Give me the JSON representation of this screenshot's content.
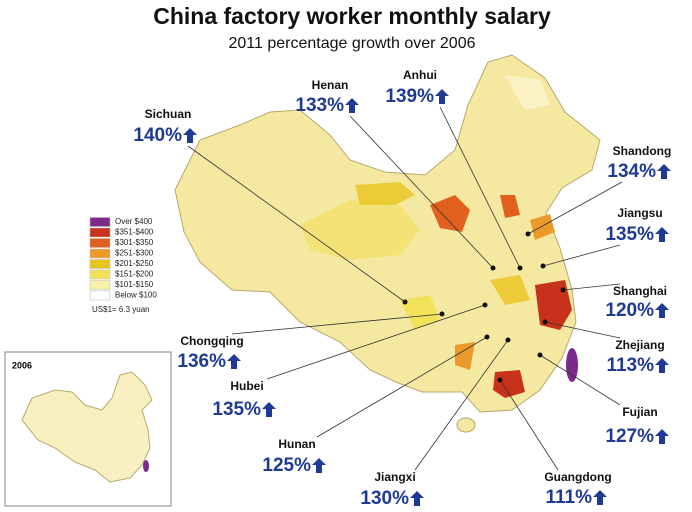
{
  "header": {
    "title": "China factory worker monthly salary",
    "subtitle": "2011 percentage growth over 2006"
  },
  "legend": {
    "items": [
      {
        "label": "Over $400",
        "color": "#7b2a8a"
      },
      {
        "label": "$351-$400",
        "color": "#c8321c"
      },
      {
        "label": "$301-$350",
        "color": "#e2601e"
      },
      {
        "label": "$251-$300",
        "color": "#eb9a2a"
      },
      {
        "label": "$201-$250",
        "color": "#e8c41e"
      },
      {
        "label": "$151-$200",
        "color": "#f1e25a"
      },
      {
        "label": "$101-$150",
        "color": "#f7f0a8"
      },
      {
        "label": "Below $100",
        "color": "#ffffff"
      }
    ],
    "note": "US$1= 6.3 yuan"
  },
  "inset": {
    "label": "2006"
  },
  "provinces": [
    {
      "name": "Sichuan",
      "growth": "140%"
    },
    {
      "name": "Henan",
      "growth": "133%"
    },
    {
      "name": "Anhui",
      "growth": "139%"
    },
    {
      "name": "Shandong",
      "growth": "134%"
    },
    {
      "name": "Jiangsu",
      "growth": "135%"
    },
    {
      "name": "Shanghai",
      "growth": "120%"
    },
    {
      "name": "Zhejiang",
      "growth": "113%"
    },
    {
      "name": "Fujian",
      "growth": "127%"
    },
    {
      "name": "Guangdong",
      "growth": "111%"
    },
    {
      "name": "Jiangxi",
      "growth": "130%"
    },
    {
      "name": "Hunan",
      "growth": "125%"
    },
    {
      "name": "Hubei",
      "growth": "135%"
    },
    {
      "name": "Chongqing",
      "growth": "136%"
    }
  ]
}
